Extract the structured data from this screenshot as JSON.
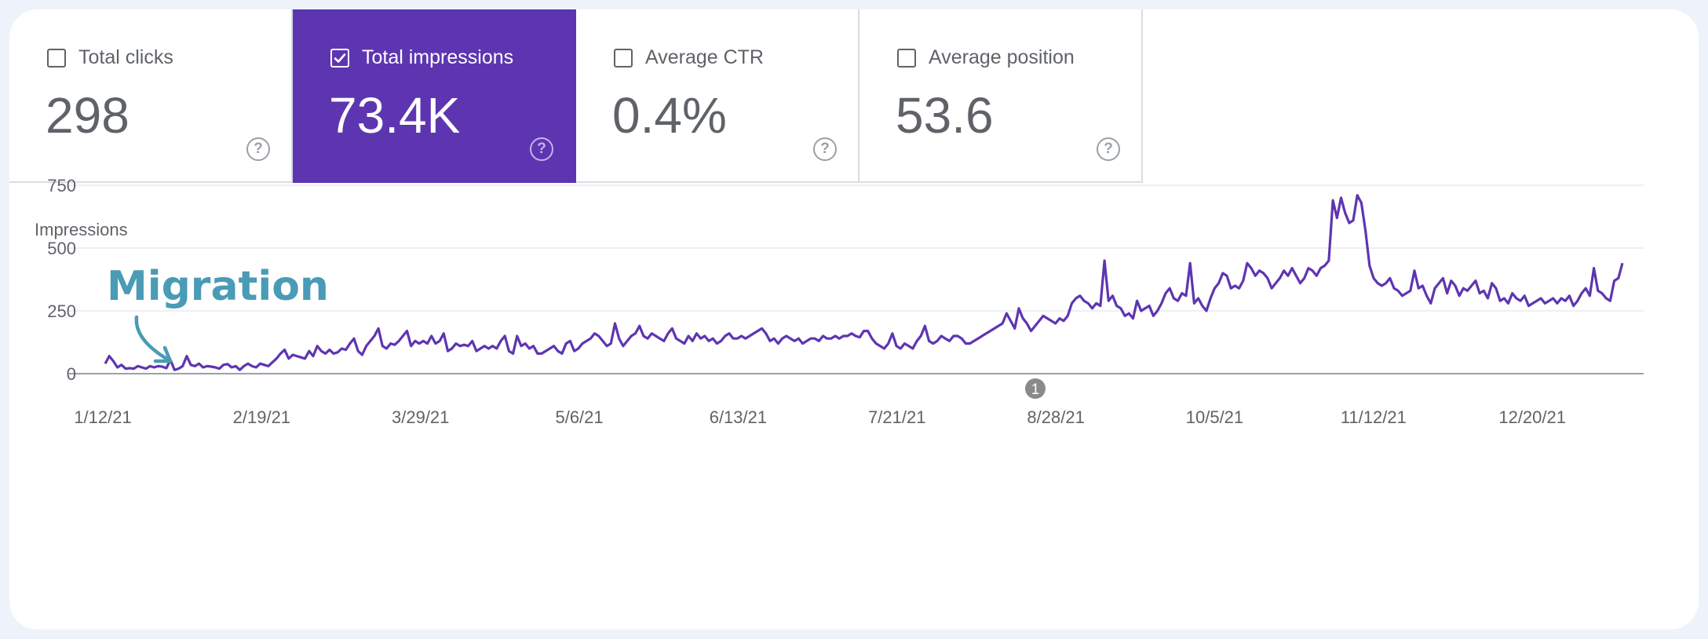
{
  "metrics": [
    {
      "label": "Total clicks",
      "value": "298",
      "checked": false
    },
    {
      "label": "Total impressions",
      "value": "73.4K",
      "checked": true
    },
    {
      "label": "Average CTR",
      "value": "0.4%",
      "checked": false
    },
    {
      "label": "Average position",
      "value": "53.6",
      "checked": false
    }
  ],
  "help_glyph": "?",
  "colors": {
    "accent": "#5e35b1",
    "line": "#5e35b1",
    "annotation": "#4a9bb5",
    "text": "#5f6368"
  },
  "chart_data": {
    "type": "line",
    "ylabel": "Impressions",
    "ylim": [
      0,
      750
    ],
    "y_ticks": [
      0,
      250,
      500,
      750
    ],
    "x_range": [
      "2021-01-12",
      "2022-01-10"
    ],
    "x_ticks": [
      "1/12/21",
      "2/19/21",
      "3/29/21",
      "5/6/21",
      "6/13/21",
      "7/21/21",
      "8/28/21",
      "10/5/21",
      "11/12/21",
      "12/20/21"
    ],
    "grid": true,
    "series": [
      {
        "values": [
          40,
          70,
          50,
          25,
          35,
          20,
          22,
          20,
          30,
          25,
          20,
          30,
          25,
          30,
          28,
          22,
          55,
          15,
          20,
          30,
          70,
          35,
          30,
          40,
          25,
          30,
          28,
          25,
          20,
          35,
          38,
          25,
          30,
          15,
          30,
          40,
          30,
          25,
          40,
          35,
          30,
          45,
          60,
          80,
          95,
          60,
          75,
          70,
          65,
          60,
          90,
          70,
          110,
          90,
          80,
          95,
          80,
          85,
          100,
          95,
          120,
          140,
          90,
          75,
          110,
          130,
          150,
          180,
          110,
          100,
          120,
          115,
          130,
          150,
          170,
          110,
          130,
          120,
          130,
          120,
          150,
          120,
          130,
          160,
          90,
          100,
          120,
          110,
          115,
          110,
          130,
          90,
          100,
          110,
          100,
          110,
          100,
          130,
          150,
          90,
          80,
          150,
          110,
          120,
          100,
          110,
          80,
          80,
          90,
          100,
          110,
          90,
          80,
          120,
          130,
          90,
          100,
          120,
          130,
          140,
          160,
          150,
          130,
          110,
          120,
          200,
          140,
          110,
          130,
          150,
          160,
          190,
          150,
          140,
          160,
          150,
          140,
          130,
          160,
          180,
          140,
          130,
          120,
          150,
          130,
          160,
          140,
          150,
          130,
          140,
          120,
          130,
          150,
          160,
          140,
          140,
          150,
          140,
          150,
          160,
          170,
          180,
          160,
          130,
          140,
          120,
          140,
          150,
          140,
          130,
          140,
          120,
          130,
          140,
          140,
          130,
          150,
          140,
          140,
          150,
          140,
          150,
          150,
          160,
          150,
          145,
          170,
          170,
          140,
          120,
          110,
          100,
          120,
          160,
          110,
          100,
          120,
          110,
          100,
          130,
          150,
          190,
          130,
          120,
          130,
          150,
          140,
          130,
          150,
          150,
          140,
          120,
          120,
          130,
          140,
          150,
          160,
          170,
          180,
          190,
          200,
          240,
          210,
          180,
          260,
          220,
          200,
          170,
          190,
          210,
          230,
          220,
          210,
          200,
          220,
          210,
          230,
          280,
          300,
          310,
          290,
          280,
          260,
          280,
          270,
          450,
          290,
          310,
          270,
          260,
          230,
          240,
          220,
          290,
          250,
          260,
          270,
          230,
          250,
          280,
          320,
          340,
          300,
          290,
          320,
          310,
          440,
          280,
          300,
          270,
          250,
          300,
          340,
          360,
          400,
          390,
          340,
          350,
          340,
          370,
          440,
          420,
          390,
          410,
          400,
          380,
          340,
          360,
          380,
          410,
          390,
          420,
          390,
          360,
          380,
          420,
          410,
          390,
          420,
          430,
          450,
          690,
          620,
          700,
          640,
          600,
          610,
          710,
          680,
          570,
          430,
          380,
          360,
          350,
          360,
          380,
          340,
          330,
          310,
          320,
          330,
          410,
          340,
          350,
          310,
          280,
          340,
          360,
          380,
          320,
          370,
          350,
          310,
          340,
          330,
          350,
          370,
          320,
          330,
          300,
          360,
          340,
          290,
          300,
          280,
          320,
          300,
          290,
          310,
          270,
          280,
          290,
          300,
          280,
          290,
          300,
          280,
          300,
          290,
          310,
          270,
          290,
          320,
          340,
          310,
          420,
          330,
          320,
          300,
          290,
          370,
          380,
          440
        ]
      }
    ],
    "annotations": [
      {
        "type": "text",
        "label": "Migration"
      },
      {
        "type": "marker",
        "label": "1"
      }
    ]
  }
}
